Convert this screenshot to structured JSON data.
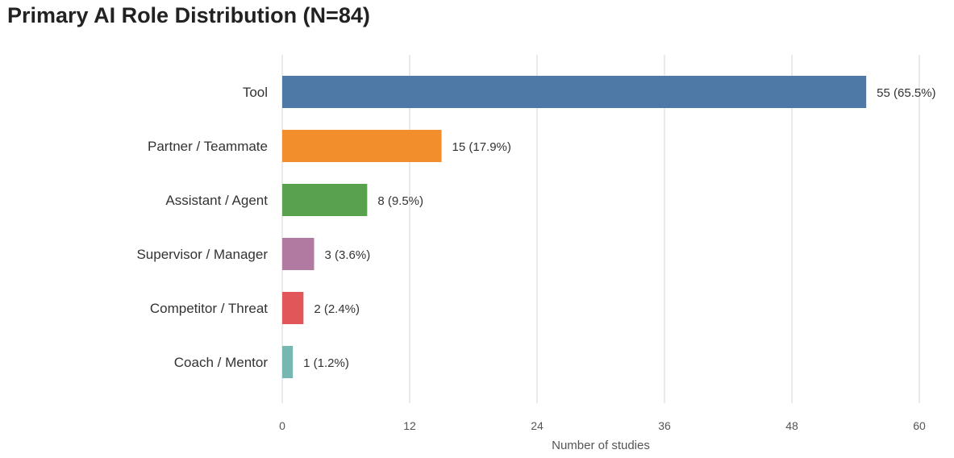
{
  "chart_data": {
    "type": "bar",
    "orientation": "horizontal",
    "title": "Primary AI Role Distribution (N=84)",
    "xlabel": "Number of studies",
    "ylabel": "",
    "xlim": [
      0,
      60
    ],
    "xticks": [
      0,
      12,
      24,
      36,
      48,
      60
    ],
    "grid": true,
    "categories": [
      "Tool",
      "Partner / Teammate",
      "Assistant / Agent",
      "Supervisor / Manager",
      "Competitor / Threat",
      "Coach / Mentor"
    ],
    "values": [
      55,
      15,
      8,
      3,
      2,
      1
    ],
    "data_labels": [
      "55 (65.5%)",
      "15 (17.9%)",
      "8 (9.5%)",
      "3 (3.6%)",
      "2 (2.4%)",
      "1 (1.2%)"
    ],
    "colors": [
      "#4e79a7",
      "#f28e2b",
      "#59a14f",
      "#b07aa1",
      "#e15759",
      "#76b7b2"
    ]
  }
}
